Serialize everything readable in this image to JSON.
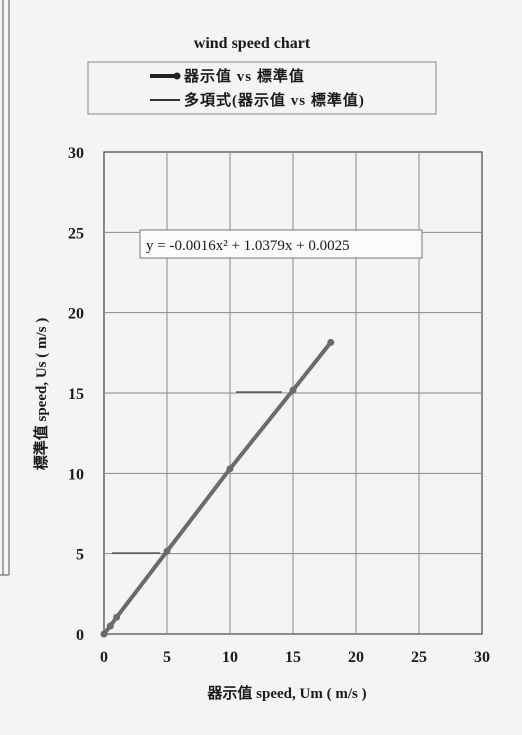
{
  "chart_data": {
    "type": "line",
    "title": "wind speed chart",
    "xlabel": "器示值 speed, Um ( m/s )",
    "ylabel": "標準值 speed, Us ( m/s )",
    "xlim": [
      0,
      30
    ],
    "ylim": [
      0,
      30
    ],
    "xticks": [
      "0",
      "5",
      "10",
      "15",
      "20",
      "25",
      "30"
    ],
    "yticks": [
      "0",
      "5",
      "10",
      "15",
      "20",
      "25",
      "30"
    ],
    "grid": true,
    "legend_position": "top",
    "series": [
      {
        "name": "器示值 vs 標準值",
        "x": [
          0,
          0.5,
          1,
          5,
          10,
          15,
          18
        ],
        "y": [
          0,
          0.5,
          1.04,
          5.15,
          10.28,
          15.18,
          18.15
        ],
        "color": "#6b6b6b",
        "marker": "circle"
      },
      {
        "name": "多項式(器示值 vs 標準值)",
        "x": [
          0,
          2,
          4,
          6,
          8,
          10,
          12,
          14,
          16,
          18
        ],
        "y": [
          0.0025,
          2.07,
          4.13,
          6.17,
          8.2,
          10.22,
          12.22,
          14.22,
          16.2,
          18.16
        ],
        "color": "#6b6b6b",
        "marker": "none"
      }
    ],
    "annotations": [
      {
        "text": "y = -0.0016x² + 1.0379x + 0.0025"
      }
    ]
  }
}
